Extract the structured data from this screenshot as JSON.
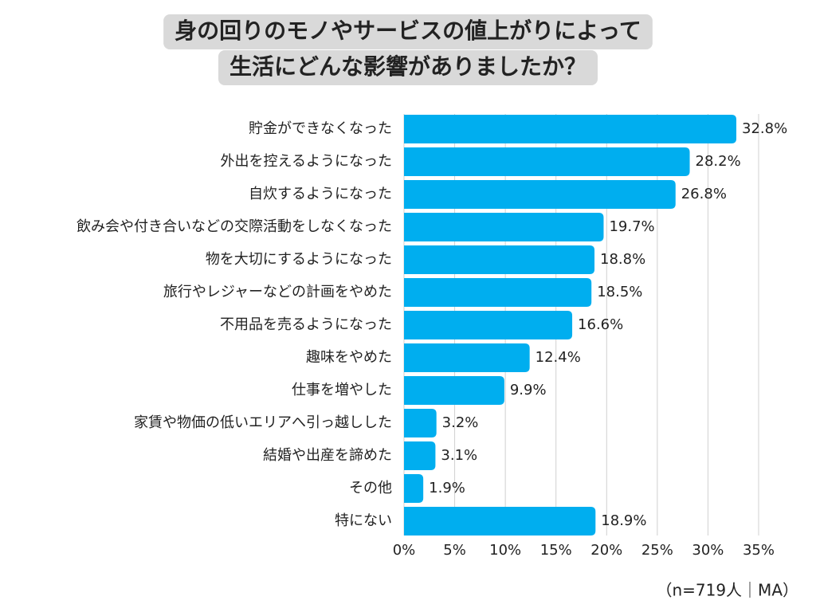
{
  "chart_data": {
    "type": "bar",
    "orientation": "horizontal",
    "title": [
      "身の回りのモノやサービスの値上がりによって",
      "生活にどんな影響がありましたか？"
    ],
    "categories": [
      "貯金ができなくなった",
      "外出を控えるようになった",
      "自炊するようになった",
      "飲み会や付き合いなどの交際活動をしなくなった",
      "物を大切にするようになった",
      "旅行やレジャーなどの計画をやめた",
      "不用品を売るようになった",
      "趣味をやめた",
      "仕事を増やした",
      "家賃や物価の低いエリアへ引っ越しした",
      "結婚や出産を諦めた",
      "その他",
      "特にない"
    ],
    "values": [
      32.8,
      28.2,
      26.8,
      19.7,
      18.8,
      18.5,
      16.6,
      12.4,
      9.9,
      3.2,
      3.1,
      1.9,
      18.9
    ],
    "value_labels": [
      "32.8%",
      "28.2%",
      "26.8%",
      "19.7%",
      "18.8%",
      "18.5%",
      "16.6%",
      "12.4%",
      "9.9%",
      "3.2%",
      "3.1%",
      "1.9%",
      "18.9%"
    ],
    "color": "#00aeef",
    "xlim": [
      0,
      35
    ],
    "xticks": [
      {
        "value": 0,
        "label": "0%"
      },
      {
        "value": 5,
        "label": "5%"
      },
      {
        "value": 10,
        "label": "10%"
      },
      {
        "value": 15,
        "label": "15%"
      },
      {
        "value": 20,
        "label": "20%"
      },
      {
        "value": 25,
        "label": "25%"
      },
      {
        "value": 30,
        "label": "30%"
      },
      {
        "value": 35,
        "label": "35%"
      }
    ],
    "grid": true,
    "note": "（n=719人｜MA）"
  }
}
